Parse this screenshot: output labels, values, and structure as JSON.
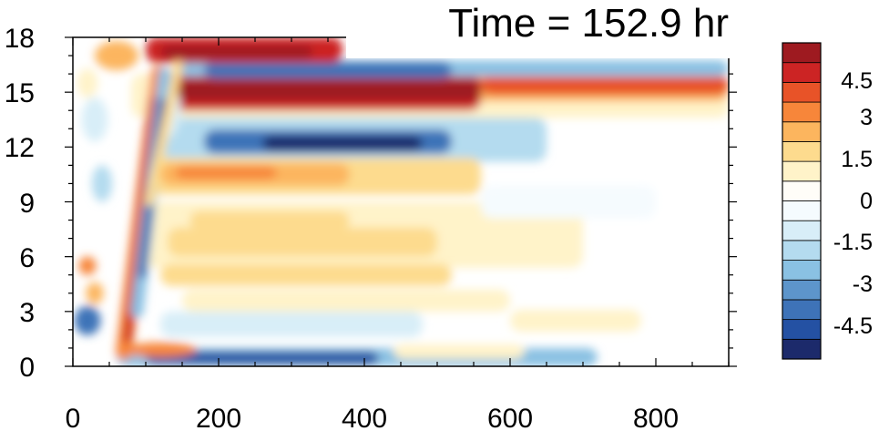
{
  "chart_data": {
    "type": "heatmap",
    "title": "Time = 152.9 hr",
    "xlabel": "",
    "ylabel": "",
    "xlim": [
      0,
      900
    ],
    "ylim": [
      0,
      18
    ],
    "x_ticks": [
      "0",
      "200",
      "400",
      "600",
      "800"
    ],
    "y_ticks": [
      "0",
      "3",
      "6",
      "9",
      "12",
      "15",
      "18"
    ],
    "colorbar": {
      "levels": [
        -5.25,
        -4.5,
        -3.75,
        -3,
        -2.25,
        -1.5,
        -0.75,
        0,
        0.75,
        1.5,
        2.25,
        3,
        3.75,
        4.5,
        5.25
      ],
      "labels": [
        "4.5",
        "3",
        "1.5",
        "0",
        "-1.5",
        "-3",
        "-4.5"
      ],
      "colors": [
        "#1c2a6b",
        "#2451a3",
        "#3e73b8",
        "#5d95cb",
        "#8ac1e3",
        "#b4dbef",
        "#d8eef8",
        "#f5fbfe",
        "#fffdf8",
        "#fff3c9",
        "#fddb8e",
        "#fcb55e",
        "#f7863a",
        "#e85328",
        "#cc2424",
        "#9e1a20"
      ]
    },
    "features": [
      {
        "name": "upper positive band (x 100-370, y 16.5-18)",
        "x": [
          100,
          370
        ],
        "y": 17.3,
        "value": 4.8
      },
      {
        "name": "negative band below upper positive (y ~16)",
        "x": [
          140,
          800
        ],
        "y": 16.2,
        "value": -4.0
      },
      {
        "name": "strong positive band (y ~15)",
        "x": [
          100,
          900
        ],
        "y": 15.0,
        "value": 4.5
      },
      {
        "name": "negative band (y ~12.3)",
        "x": [
          150,
          600
        ],
        "y": 12.3,
        "value": -4.3
      },
      {
        "name": "positive band (y ~10.5)",
        "x": [
          100,
          550
        ],
        "y": 10.5,
        "value": 2.5
      },
      {
        "name": "near-surface negative band (y ~0.5)",
        "x": [
          70,
          700
        ],
        "y": 0.5,
        "value": -4.2
      },
      {
        "name": "diagonal positive front",
        "x": [
          70,
          120
        ],
        "y": [
          1,
          16
        ],
        "value": 4.5
      },
      {
        "name": "diagonal negative front",
        "x": [
          90,
          125
        ],
        "y": [
          2,
          16
        ],
        "value": -4.0
      }
    ]
  }
}
